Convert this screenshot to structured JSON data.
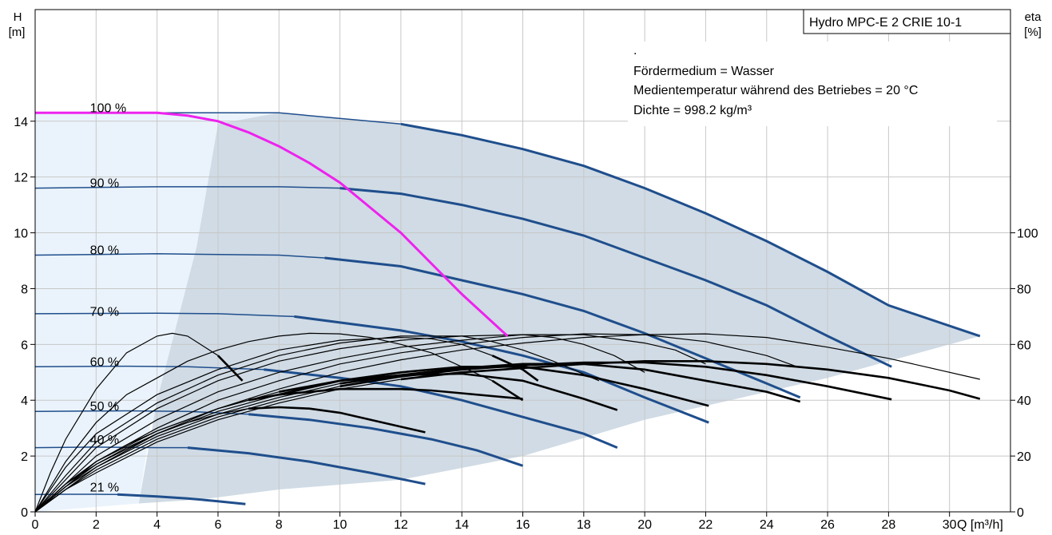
{
  "chart_data": {
    "type": "line",
    "title": "Hydro MPC-E 2 CRIE 10-1",
    "info_lines": [
      ".",
      "Fördermedium = Wasser",
      "Medientemperatur während des Betriebes = 20 °C",
      "Dichte = 998.2 kg/m³"
    ],
    "xlabel": "Q [m³/h]",
    "ylabel_left": [
      "H",
      "[m]"
    ],
    "ylabel_right": [
      "eta",
      "[%]"
    ],
    "xlim": [
      0,
      32
    ],
    "ylim": [
      0,
      18
    ],
    "x_ticks": [
      0,
      2,
      4,
      6,
      8,
      10,
      12,
      14,
      16,
      18,
      20,
      22,
      24,
      26,
      28,
      30
    ],
    "y_ticks_left": [
      0,
      2,
      4,
      6,
      8,
      10,
      12,
      14
    ],
    "y_ticks_right": [
      0,
      20,
      40,
      60,
      80,
      100
    ],
    "right_axis_range": [
      0,
      180
    ],
    "grid": true,
    "colors": {
      "head_curve": "#1f4e8c",
      "system_curve": "#ee22ee",
      "efficiency": "#000000",
      "envelope": "#d0dbe5",
      "envelope_light": "#eaf3fb",
      "grid": "#c8c8c8"
    },
    "speed_labels": [
      {
        "text": "100 %",
        "x": 1.8,
        "y": 14.5
      },
      {
        "text": "90 %",
        "x": 1.8,
        "y": 11.8
      },
      {
        "text": "80 %",
        "x": 1.8,
        "y": 9.4
      },
      {
        "text": "70 %",
        "x": 1.8,
        "y": 7.2
      },
      {
        "text": "60 %",
        "x": 1.8,
        "y": 5.4
      },
      {
        "text": "50 %",
        "x": 1.8,
        "y": 3.8
      },
      {
        "text": "40 %",
        "x": 1.8,
        "y": 2.6
      },
      {
        "text": "21 %",
        "x": 1.8,
        "y": 0.9
      }
    ],
    "series": [
      {
        "name": "100 %",
        "role": "head",
        "x": [
          0,
          4,
          8,
          12,
          14,
          16,
          18,
          20,
          22,
          24,
          26,
          28,
          31
        ],
        "y": [
          14.3,
          14.3,
          14.3,
          13.9,
          13.5,
          13.0,
          12.4,
          11.6,
          10.7,
          9.7,
          8.6,
          7.4,
          6.3
        ],
        "thick_from": 12
      },
      {
        "name": "90 %",
        "role": "head",
        "x": [
          0,
          4,
          8,
          10,
          12,
          14,
          16,
          18,
          20,
          22,
          24,
          26,
          28.1
        ],
        "y": [
          11.6,
          11.65,
          11.65,
          11.6,
          11.4,
          11.0,
          10.5,
          9.9,
          9.1,
          8.3,
          7.4,
          6.3,
          5.2
        ],
        "thick_from": 10.5
      },
      {
        "name": "80 %",
        "role": "head",
        "x": [
          0,
          4,
          8,
          9.5,
          12,
          14,
          16,
          18,
          20,
          22,
          24,
          25.1
        ],
        "y": [
          9.2,
          9.25,
          9.2,
          9.1,
          8.8,
          8.3,
          7.8,
          7.2,
          6.4,
          5.5,
          4.6,
          4.1
        ],
        "thick_from": 9.5
      },
      {
        "name": "70 %",
        "role": "head",
        "x": [
          0,
          4,
          6,
          8.5,
          12,
          14,
          16,
          18,
          20,
          22.1
        ],
        "y": [
          7.1,
          7.12,
          7.1,
          7.0,
          6.5,
          6.1,
          5.6,
          5.0,
          4.1,
          3.2
        ],
        "thick_from": 8.5
      },
      {
        "name": "60 %",
        "role": "head",
        "x": [
          0,
          3,
          5,
          7.5,
          10,
          12,
          14,
          16,
          18,
          19.1
        ],
        "y": [
          5.2,
          5.22,
          5.2,
          5.1,
          4.8,
          4.5,
          4.0,
          3.4,
          2.8,
          2.3
        ],
        "thick_from": 7.5
      },
      {
        "name": "50 %",
        "role": "head",
        "x": [
          0,
          3,
          5,
          7,
          9,
          11,
          13,
          14.5,
          16
        ],
        "y": [
          3.6,
          3.62,
          3.6,
          3.5,
          3.3,
          3.0,
          2.6,
          2.2,
          1.65
        ],
        "thick_from": 7
      },
      {
        "name": "40 %",
        "role": "head",
        "x": [
          0,
          2,
          4,
          5,
          7,
          9,
          11,
          12.8
        ],
        "y": [
          2.3,
          2.32,
          2.3,
          2.3,
          2.1,
          1.8,
          1.4,
          1.0
        ],
        "thick_from": 5
      },
      {
        "name": "21 %",
        "role": "head",
        "x": [
          0,
          1,
          2,
          2.7,
          4,
          5,
          6,
          6.9
        ],
        "y": [
          0.62,
          0.63,
          0.63,
          0.62,
          0.55,
          0.48,
          0.38,
          0.28
        ],
        "thick_from": 2.7
      },
      {
        "name": "",
        "role": "system",
        "x": [
          0,
          4,
          5,
          6,
          7,
          8,
          9,
          10,
          11,
          12,
          13,
          14,
          15.5
        ],
        "y": [
          14.3,
          14.3,
          14.2,
          14.0,
          13.6,
          13.1,
          12.5,
          11.8,
          10.9,
          10.0,
          8.9,
          7.8,
          6.3
        ]
      },
      {
        "name": "",
        "role": "efficiency",
        "x": [
          0,
          0.5,
          1,
          2,
          3,
          4,
          4.5,
          5,
          6,
          6.8
        ],
        "y": [
          0,
          14,
          26,
          44,
          57,
          63,
          64,
          63,
          56,
          47
        ],
        "thick_from": 6.5
      },
      {
        "name": "",
        "role": "efficiency",
        "x": [
          0,
          1,
          2,
          3,
          4,
          5,
          6,
          7,
          8,
          9,
          10,
          11,
          12,
          13,
          14,
          15,
          16
        ],
        "y": [
          0,
          18,
          32,
          42,
          48,
          54,
          58,
          61,
          63,
          64,
          63.8,
          62.5,
          60,
          57,
          52,
          47,
          40
        ],
        "thick_from": 15
      },
      {
        "name": "",
        "role": "efficiency",
        "x": [
          0,
          1,
          2,
          4,
          6,
          8,
          10,
          12,
          13,
          14,
          15,
          16,
          16.5
        ],
        "y": [
          0,
          16,
          28,
          42,
          51,
          58,
          61.5,
          62.5,
          62,
          60,
          56,
          51,
          47
        ],
        "thick_from": 15.5
      },
      {
        "name": "",
        "role": "efficiency",
        "x": [
          0,
          1,
          2,
          4,
          6,
          8,
          10,
          12,
          14,
          15,
          16,
          17,
          18.5
        ],
        "y": [
          0,
          13,
          25,
          39,
          49,
          56,
          60.5,
          63,
          63,
          61,
          58,
          54,
          47
        ]
      },
      {
        "name": "",
        "role": "efficiency",
        "x": [
          0,
          2,
          4,
          6,
          8,
          10,
          12,
          14,
          16,
          17,
          18,
          19,
          20
        ],
        "y": [
          0,
          23,
          37,
          47,
          54,
          58.5,
          61.5,
          63,
          63.5,
          62.5,
          60,
          56,
          50
        ]
      },
      {
        "name": "",
        "role": "efficiency",
        "x": [
          0,
          2,
          4,
          6,
          8,
          10,
          12,
          14,
          16,
          18,
          20,
          21,
          22
        ],
        "y": [
          0,
          20,
          33,
          43,
          50,
          55,
          59,
          61.5,
          63.5,
          63.5,
          60.5,
          58,
          53
        ]
      },
      {
        "name": "",
        "role": "efficiency",
        "x": [
          0,
          2,
          4,
          6,
          8,
          10,
          12,
          14,
          16,
          18,
          20,
          22,
          24,
          25
        ],
        "y": [
          0,
          18,
          30,
          40,
          47,
          53,
          57,
          60,
          62.5,
          63.8,
          63.5,
          61,
          56,
          52
        ]
      },
      {
        "name": "",
        "role": "efficiency",
        "x": [
          0,
          2,
          4,
          6,
          8,
          10,
          12,
          14,
          16,
          18,
          20,
          22,
          24,
          26,
          28,
          31
        ],
        "y": [
          0,
          16,
          28,
          37,
          44,
          50,
          54.5,
          58,
          60.5,
          62.5,
          63.5,
          63.8,
          62.5,
          59,
          55,
          47.5
        ]
      },
      {
        "name": "",
        "role": "efficiency",
        "x": [
          0,
          1,
          2,
          3,
          4,
          5,
          6,
          7,
          8,
          9,
          10,
          12.8
        ],
        "y": [
          0,
          10,
          17,
          23,
          28,
          32,
          35,
          37,
          37.5,
          37,
          35.5,
          28.5
        ],
        "thick_from": 7
      },
      {
        "name": "",
        "role": "efficiency",
        "x": [
          0,
          1,
          2,
          3,
          4,
          5,
          6,
          7,
          8,
          10,
          12,
          13,
          14,
          16
        ],
        "y": [
          0,
          10,
          18,
          24,
          29,
          33,
          37,
          40,
          42,
          44,
          44,
          43.5,
          42.5,
          40.5
        ],
        "thick_from": 7
      },
      {
        "name": "",
        "role": "efficiency",
        "x": [
          0,
          1,
          2,
          4,
          6,
          8,
          10,
          12,
          14,
          16,
          18,
          19.1
        ],
        "y": [
          0,
          10,
          18,
          29,
          37,
          43,
          47,
          49,
          49.5,
          47,
          40.5,
          36.5
        ],
        "thick_from": 8
      },
      {
        "name": "",
        "role": "efficiency",
        "x": [
          0,
          1,
          2,
          4,
          6,
          8,
          10,
          12,
          14,
          16,
          18,
          20,
          22.1
        ],
        "y": [
          0,
          9,
          17,
          28,
          36,
          42,
          47,
          50,
          52,
          52,
          49,
          44,
          38
        ],
        "thick_from": 9
      },
      {
        "name": "",
        "role": "efficiency",
        "x": [
          0,
          1,
          2,
          4,
          6,
          8,
          10,
          12,
          14,
          16,
          18,
          20,
          22,
          24,
          25.1
        ],
        "y": [
          0,
          9,
          16,
          27,
          35,
          41,
          46,
          49,
          51.5,
          53,
          53,
          51,
          47,
          43,
          39.5
        ],
        "thick_from": 10
      },
      {
        "name": "",
        "role": "efficiency",
        "x": [
          0,
          1,
          2,
          4,
          6,
          8,
          10,
          12,
          14,
          16,
          18,
          20,
          22,
          24,
          26,
          28.1
        ],
        "y": [
          0,
          8,
          15,
          26,
          34,
          40,
          45,
          48.5,
          51,
          52.5,
          53.5,
          53.5,
          52,
          49,
          45,
          40.3
        ],
        "thick_from": 11
      },
      {
        "name": "",
        "role": "efficiency",
        "x": [
          0,
          1,
          2,
          4,
          6,
          8,
          10,
          12,
          14,
          16,
          18,
          20,
          22,
          24,
          26,
          28,
          30,
          31
        ],
        "y": [
          0,
          8,
          14,
          25,
          33,
          39,
          44,
          47.5,
          50,
          51.5,
          53,
          54,
          54,
          53,
          51,
          48,
          43.5,
          40.5
        ],
        "thick_from": 12
      }
    ]
  }
}
